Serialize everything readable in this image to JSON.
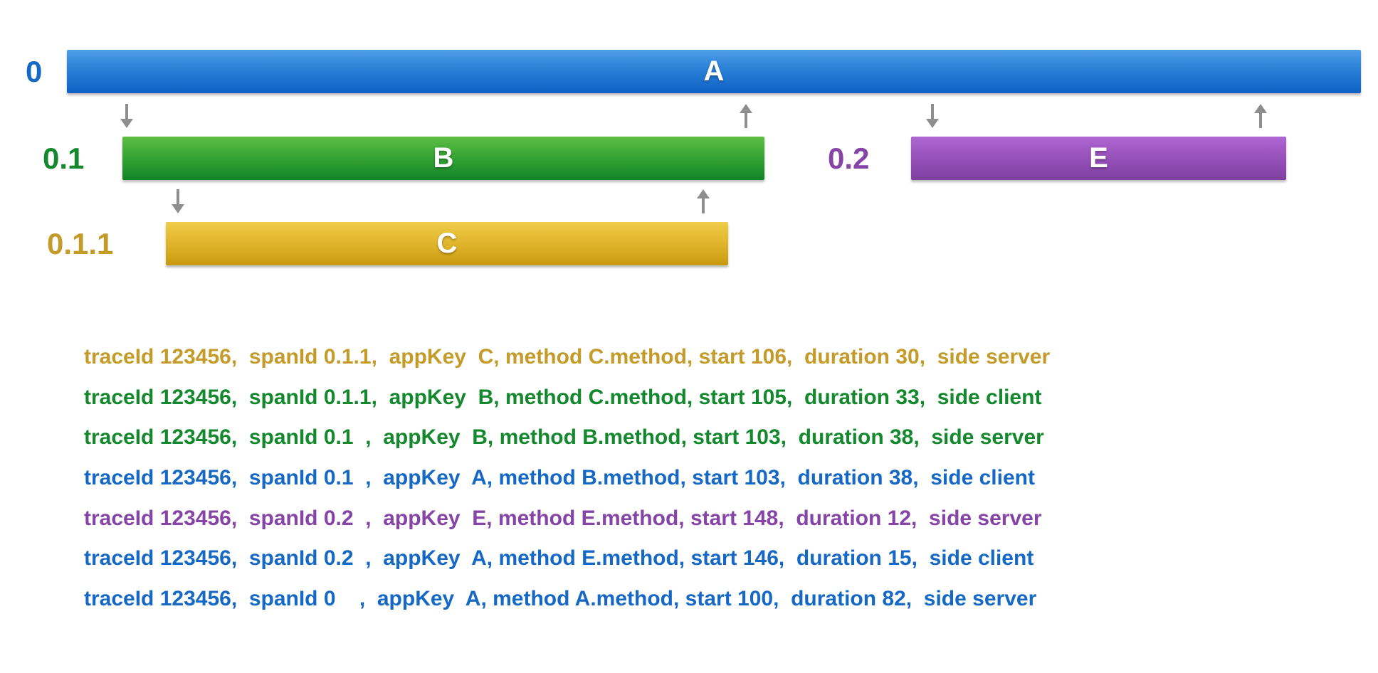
{
  "diagram": {
    "bars": [
      {
        "span_id": "0",
        "label": "A",
        "start": 100,
        "duration": 82,
        "color": "#1568c4",
        "bar_color_top": "#4f9fe9",
        "bar_color_bottom": "#0e62c5"
      },
      {
        "span_id": "0.1",
        "label": "B",
        "start": 103,
        "duration": 38,
        "color": "#13882c",
        "bar_color_top": "#5ebe43",
        "bar_color_bottom": "#128327"
      },
      {
        "span_id": "0.1.1",
        "label": "C",
        "start": 106,
        "duration": 30,
        "color": "#c49b28",
        "bar_color_top": "#f0cc49",
        "bar_color_bottom": "#c9990d"
      },
      {
        "span_id": "0.2",
        "label": "E",
        "start": 148,
        "duration": 12,
        "color": "#8544a6",
        "bar_color_top": "#ae66d2",
        "bar_color_bottom": "#7f3fa1"
      }
    ],
    "arrows": [
      {
        "name": "a-to-b-request",
        "direction": "down"
      },
      {
        "name": "b-to-a-response",
        "direction": "up"
      },
      {
        "name": "a-to-e-request",
        "direction": "down"
      },
      {
        "name": "e-to-a-response",
        "direction": "up"
      },
      {
        "name": "b-to-c-request",
        "direction": "down"
      },
      {
        "name": "c-to-b-response",
        "direction": "up"
      }
    ],
    "arrow_color": "#8e8e8e"
  },
  "trace_log": {
    "lines": [
      {
        "text": "traceId 123456,  spanId 0.1.1,  appKey  C, method C.method, start 106,  duration 30,  side server",
        "color": "#c49b28"
      },
      {
        "text": "traceId 123456,  spanId 0.1.1,  appKey  B, method C.method, start 105,  duration 33,  side client",
        "color": "#13882c"
      },
      {
        "text": "traceId 123456,  spanId 0.1  ,  appKey  B, method B.method, start 103,  duration 38,  side server",
        "color": "#13882c"
      },
      {
        "text": "traceId 123456,  spanId 0.1  ,  appKey  A, method B.method, start 103,  duration 38,  side client",
        "color": "#1568c4"
      },
      {
        "text": "traceId 123456,  spanId 0.2  ,  appKey  E, method E.method, start 148,  duration 12,  side server",
        "color": "#8544a6"
      },
      {
        "text": "traceId 123456,  spanId 0.2  ,  appKey  A, method E.method, start 146,  duration 15,  side client",
        "color": "#1568c4"
      },
      {
        "text": "traceId 123456,  spanId 0    ,  appKey  A, method A.method, start 100,  duration 82,  side server",
        "color": "#1568c4"
      }
    ]
  }
}
